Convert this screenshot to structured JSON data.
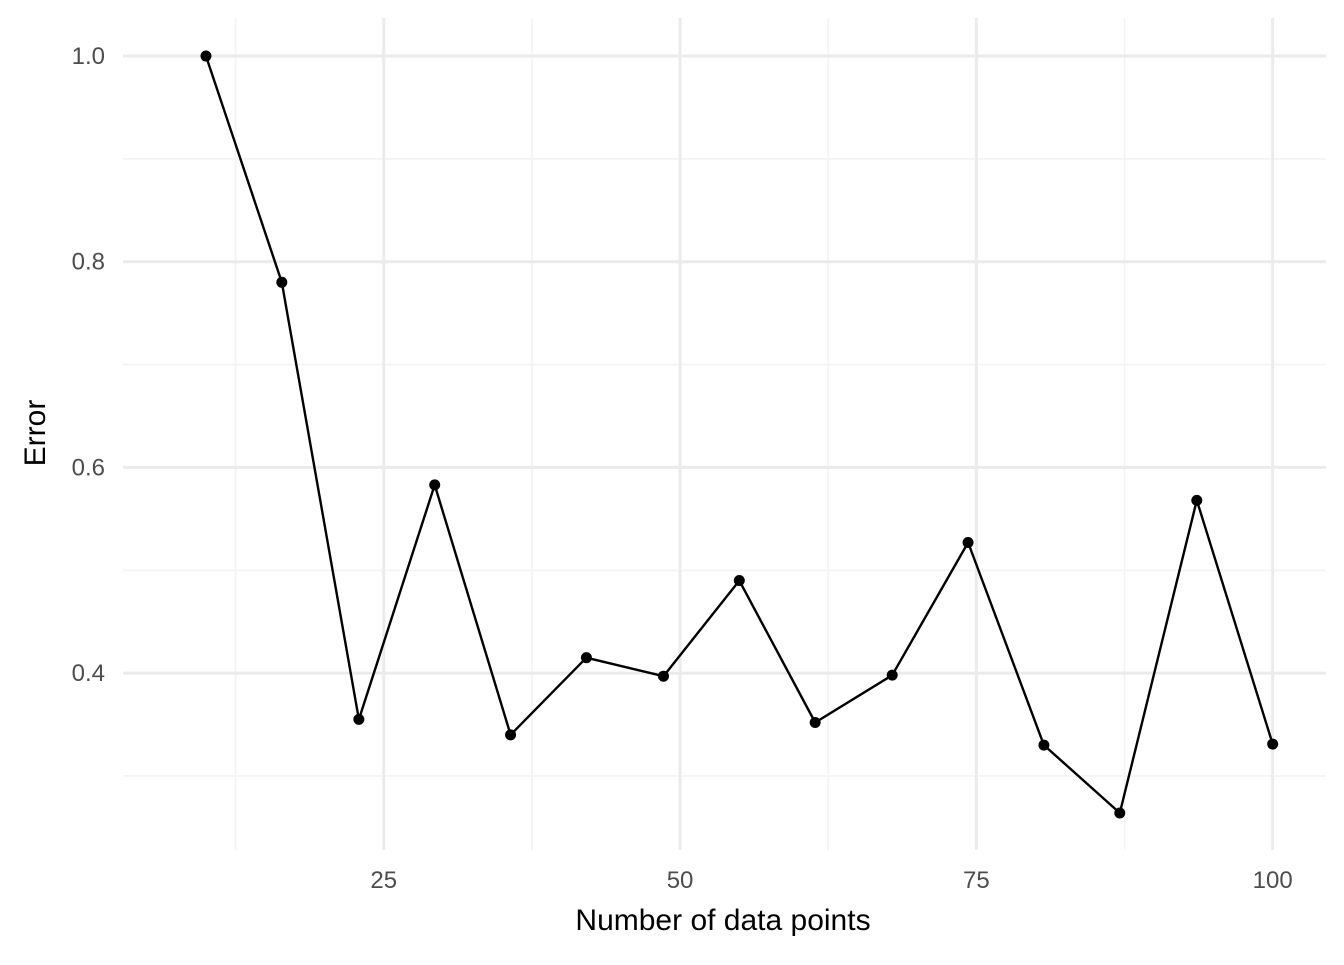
{
  "chart_data": {
    "type": "line",
    "title": "",
    "xlabel": "Number of data points",
    "ylabel": "Error",
    "x": [
      10,
      16.4,
      22.9,
      29.3,
      35.7,
      42.1,
      48.6,
      55,
      61.4,
      67.9,
      74.3,
      80.7,
      87.1,
      93.6,
      100
    ],
    "series": [
      {
        "values": [
          1.0,
          0.78,
          0.355,
          0.583,
          0.34,
          0.415,
          0.397,
          0.49,
          0.352,
          0.398,
          0.527,
          0.33,
          0.264,
          0.568,
          0.331
        ]
      }
    ],
    "xlim": [
      3,
      104.5
    ],
    "ylim": [
      0.228,
      1.037
    ],
    "xticks": [
      25,
      50,
      75,
      100
    ],
    "xtick_labels": [
      "25",
      "50",
      "75",
      "100"
    ],
    "yticks": [
      0.4,
      0.6,
      0.8,
      1.0
    ],
    "ytick_labels": [
      "0.4",
      "0.6",
      "0.8",
      "1.0"
    ],
    "x_minor": [
      12.5,
      37.5,
      62.5,
      87.5
    ],
    "y_minor": [
      0.3,
      0.5,
      0.7,
      0.9
    ],
    "grid": true,
    "legend": "none",
    "colors": {
      "line": "#000000",
      "point": "#000000",
      "grid_major": "#ebebeb",
      "grid_minor": "#f3f3f3",
      "tick_text": "#4d4d4d"
    }
  }
}
